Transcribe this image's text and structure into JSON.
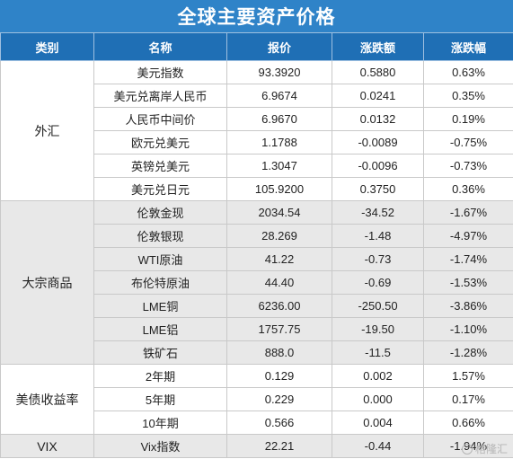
{
  "title": "全球主要资产价格",
  "headers": [
    "类别",
    "名称",
    "报价",
    "涨跌额",
    "涨跌幅"
  ],
  "groups": [
    {
      "name": "外汇",
      "rows": [
        {
          "name": "美元指数",
          "price": "93.3920",
          "change": "0.5880",
          "pct": "0.63%"
        },
        {
          "name": "美元兑离岸人民币",
          "price": "6.9674",
          "change": "0.0241",
          "pct": "0.35%"
        },
        {
          "name": "人民币中间价",
          "price": "6.9670",
          "change": "0.0132",
          "pct": "0.19%"
        },
        {
          "name": "欧元兑美元",
          "price": "1.1788",
          "change": "-0.0089",
          "pct": "-0.75%"
        },
        {
          "name": "英镑兑美元",
          "price": "1.3047",
          "change": "-0.0096",
          "pct": "-0.73%"
        },
        {
          "name": "美元兑日元",
          "price": "105.9200",
          "change": "0.3750",
          "pct": "0.36%"
        }
      ]
    },
    {
      "name": "大宗商品",
      "rows": [
        {
          "name": "伦敦金现",
          "price": "2034.54",
          "change": "-34.52",
          "pct": "-1.67%"
        },
        {
          "name": "伦敦银现",
          "price": "28.269",
          "change": "-1.48",
          "pct": "-4.97%"
        },
        {
          "name": "WTI原油",
          "price": "41.22",
          "change": "-0.73",
          "pct": "-1.74%"
        },
        {
          "name": "布伦特原油",
          "price": "44.40",
          "change": "-0.69",
          "pct": "-1.53%"
        },
        {
          "name": "LME铜",
          "price": "6236.00",
          "change": "-250.50",
          "pct": "-3.86%"
        },
        {
          "name": "LME铝",
          "price": "1757.75",
          "change": "-19.50",
          "pct": "-1.10%"
        },
        {
          "name": "铁矿石",
          "price": "888.0",
          "change": "-11.5",
          "pct": "-1.28%"
        }
      ]
    },
    {
      "name": "美债收益率",
      "rows": [
        {
          "name": "2年期",
          "price": "0.129",
          "change": "0.002",
          "pct": "1.57%"
        },
        {
          "name": "5年期",
          "price": "0.229",
          "change": "0.000",
          "pct": "0.17%"
        },
        {
          "name": "10年期",
          "price": "0.566",
          "change": "0.004",
          "pct": "0.66%"
        }
      ]
    },
    {
      "name": "VIX",
      "rows": [
        {
          "name": "Vix指数",
          "price": "22.21",
          "change": "-0.44",
          "pct": "-1.94%"
        }
      ]
    }
  ],
  "watermark": "格隆汇"
}
